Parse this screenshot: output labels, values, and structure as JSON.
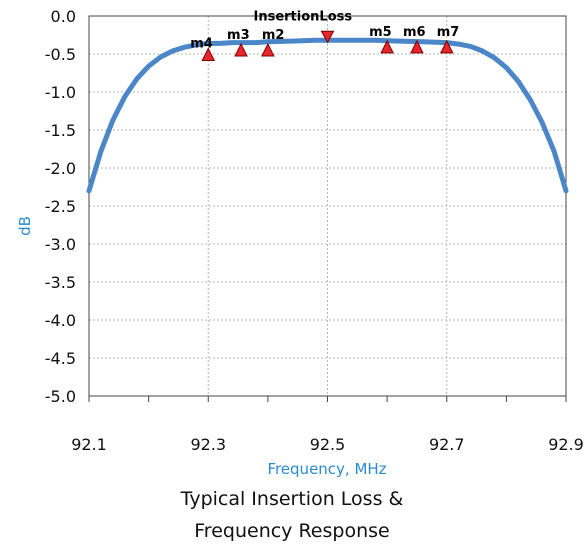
{
  "chart_data": {
    "type": "line",
    "title": "Typical Insertion Loss & Frequency Response",
    "title_lines": [
      "Typical Insertion Loss &",
      "Frequency Response"
    ],
    "xlabel": "Frequency, MHz",
    "ylabel": "dB",
    "xlim": [
      92.1,
      92.9
    ],
    "ylim": [
      -5.0,
      0.0
    ],
    "x_ticks": [
      "92.1",
      "92.3",
      "92.5",
      "92.7",
      "92.9"
    ],
    "y_ticks": [
      "0.0",
      "-0.5",
      "-1.0",
      "-1.5",
      "-2.0",
      "-2.5",
      "-3.0",
      "-3.5",
      "-4.0",
      "-4.5",
      "-5.0"
    ],
    "grid": true,
    "series": [
      {
        "name": "InsertionLoss",
        "color": "#4a86c8",
        "x": [
          92.1,
          92.12,
          92.14,
          92.16,
          92.18,
          92.2,
          92.22,
          92.24,
          92.26,
          92.28,
          92.3,
          92.32,
          92.34,
          92.36,
          92.38,
          92.4,
          92.44,
          92.48,
          92.5,
          92.54,
          92.58,
          92.62,
          92.66,
          92.7,
          92.72,
          92.74,
          92.76,
          92.78,
          92.8,
          92.82,
          92.84,
          92.86,
          92.88,
          92.9
        ],
        "values": [
          -2.3,
          -1.78,
          -1.37,
          -1.06,
          -0.83,
          -0.66,
          -0.54,
          -0.46,
          -0.41,
          -0.38,
          -0.36,
          -0.36,
          -0.35,
          -0.35,
          -0.35,
          -0.34,
          -0.33,
          -0.32,
          -0.32,
          -0.32,
          -0.32,
          -0.33,
          -0.34,
          -0.35,
          -0.37,
          -0.4,
          -0.46,
          -0.55,
          -0.68,
          -0.86,
          -1.1,
          -1.4,
          -1.78,
          -2.3
        ]
      }
    ],
    "markers": [
      {
        "name": "m4",
        "x": 92.3,
        "y": -0.52,
        "direction": "up"
      },
      {
        "name": "m3",
        "x": 92.355,
        "y": -0.46,
        "direction": "up"
      },
      {
        "name": "m2",
        "x": 92.4,
        "y": -0.46,
        "direction": "up"
      },
      {
        "name": "InsertionLoss",
        "x": 92.5,
        "y": -0.28,
        "direction": "down"
      },
      {
        "name": "m5",
        "x": 92.6,
        "y": -0.42,
        "direction": "up"
      },
      {
        "name": "m6",
        "x": 92.65,
        "y": -0.42,
        "direction": "up"
      },
      {
        "name": "m7",
        "x": 92.7,
        "y": -0.42,
        "direction": "up"
      }
    ]
  }
}
